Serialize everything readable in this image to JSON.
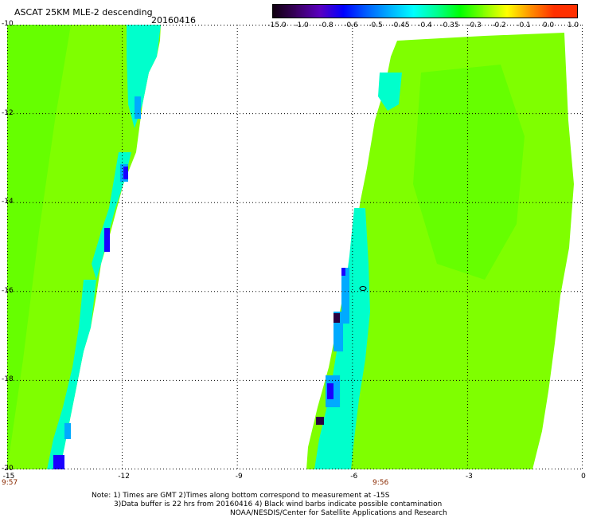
{
  "header": {
    "title": "ASCAT 25KM MLE-2 descending",
    "date": "20160416"
  },
  "colorbar": {
    "labels": [
      "-15.0",
      "-1.0",
      "-0.8",
      "-0.6",
      "-0.5",
      "-0.45",
      "-0.4",
      "-0.35",
      "-0.3",
      "-0.2",
      "-0.1",
      "0.0",
      "1.0"
    ],
    "colors": [
      "#100010",
      "#3a0060",
      "#5a00c0",
      "#0000ff",
      "#0060ff",
      "#00b0ff",
      "#00ffff",
      "#00ff90",
      "#00ff00",
      "#80ff00",
      "#ffff00",
      "#ff9000",
      "#ff3000"
    ]
  },
  "map": {
    "lat_labels": [
      "-10",
      "-12",
      "-14",
      "-16",
      "-18",
      "-20"
    ],
    "lon_labels": [
      "-15",
      "-12",
      "-9",
      "-6",
      "-3",
      "0"
    ],
    "lon_range": [
      -15,
      0
    ],
    "lat_range": [
      -10,
      -20
    ],
    "time_labels": [
      "9:57",
      "9:56"
    ],
    "colors": {
      "field": "#7fff00",
      "field_alt": "#66ff00",
      "low": "#00ffcc",
      "lower": "#00aaff",
      "lowest": "#1a00ff",
      "dark": "#2a0040"
    }
  },
  "notes": {
    "line1": "Note: 1) Times are GMT 2)Times along bottom correspond to measurement at -15S",
    "line2": "3)Data buffer is 22 hrs from 20160416 4) Black wind barbs indicate possible contamination",
    "line3": "NOAA/NESDIS/Center for Satellite Applications and Research"
  }
}
